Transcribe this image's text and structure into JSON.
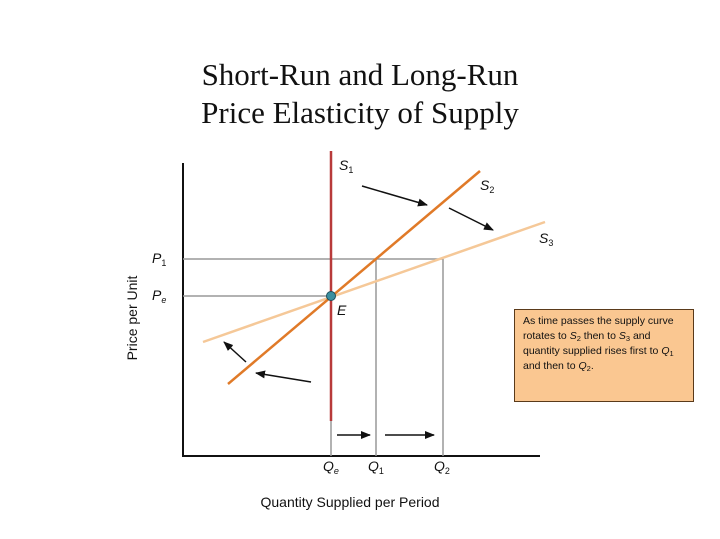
{
  "title": {
    "line1": "Short-Run and Long-Run",
    "line2": "Price Elasticity of Supply"
  },
  "axes": {
    "ylabel": "Price per Unit",
    "xlabel": "Quantity Supplied per Period"
  },
  "labels": {
    "s_letter": "S",
    "s1_sub": "1",
    "s2_sub": "2",
    "s3_sub": "3",
    "p_letter": "P",
    "p1_sub": "1",
    "pe_sub": "e",
    "q_letter": "Q",
    "qe_sub": "e",
    "q1_sub": "1",
    "q2_sub": "2",
    "equilibrium": "E"
  },
  "note": {
    "t1": "As time passes the supply curve rotates to ",
    "s": "S",
    "s2sub": "2",
    "t2": " then to ",
    "s3sub": "3",
    "t3": " and quantity supplied rises first to ",
    "q": "Q",
    "q1sub": "1",
    "t4": " and then to ",
    "q2sub": "2",
    "t5": "."
  },
  "colors": {
    "s1": "#b83a3a",
    "s2": "#e07a28",
    "s3": "#f5c898",
    "guide": "#999999",
    "axis": "#111111",
    "note_bg": "#fac791",
    "point": "#3a8fa0"
  }
}
